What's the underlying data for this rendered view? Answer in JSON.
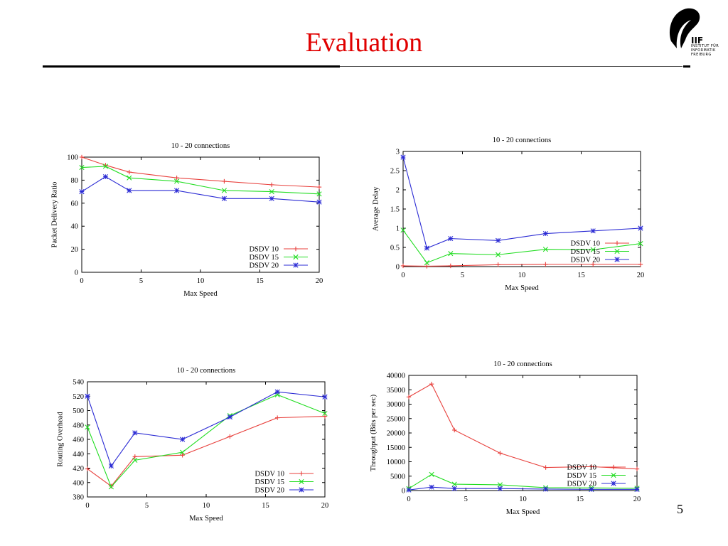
{
  "slide": {
    "title": "Evaluation",
    "page_number": "5",
    "logo": {
      "abbr": "IIF",
      "line1": "INSTITUT FÜR",
      "line2": "INFORMATIK",
      "line3": "FREIBURG"
    }
  },
  "colors": {
    "dsdv10": "#e8413d",
    "dsdv15": "#22dd22",
    "dsdv20": "#2b2bd4",
    "title": "#e00000"
  },
  "chart_data": [
    {
      "id": "pdr",
      "type": "line",
      "title": "10 - 20 connections",
      "xlabel": "Max Speed",
      "ylabel": "Packet Delivery Ratio",
      "xlim": [
        0,
        20
      ],
      "ylim": [
        0,
        100
      ],
      "xticks": [
        0,
        5,
        10,
        15,
        20
      ],
      "yticks": [
        0,
        20,
        40,
        60,
        80,
        100
      ],
      "ytick_labels": [
        "0",
        "20",
        "40",
        "60",
        "80",
        "100"
      ],
      "legend_position": "bottom-right",
      "series": [
        {
          "name": "DSDV 10",
          "marker": "+",
          "color": "#e8413d",
          "x": [
            0,
            2,
            4,
            8,
            12,
            16,
            20
          ],
          "y": [
            100,
            93,
            87,
            82,
            79,
            76,
            74
          ]
        },
        {
          "name": "DSDV 15",
          "marker": "x",
          "color": "#22dd22",
          "x": [
            0,
            2,
            4,
            8,
            12,
            16,
            20
          ],
          "y": [
            91,
            92,
            82,
            79,
            71,
            70,
            68
          ]
        },
        {
          "name": "DSDV 20",
          "marker": "*",
          "color": "#2b2bd4",
          "x": [
            0,
            2,
            4,
            8,
            12,
            16,
            20
          ],
          "y": [
            70,
            83,
            71,
            71,
            64,
            64,
            61
          ]
        }
      ]
    },
    {
      "id": "delay",
      "type": "line",
      "title": "10 - 20 connections",
      "xlabel": "Max Speed",
      "ylabel": "Average Delay",
      "xlim": [
        0,
        20
      ],
      "ylim": [
        0,
        3
      ],
      "xticks": [
        0,
        5,
        10,
        15,
        20
      ],
      "yticks": [
        0,
        0.5,
        1,
        1.5,
        2,
        2.5,
        3
      ],
      "ytick_labels": [
        "0",
        "0.5",
        "1",
        "1.5",
        "2",
        "2.5",
        "3"
      ],
      "legend_position": "bottom-right",
      "series": [
        {
          "name": "DSDV 10",
          "marker": "+",
          "color": "#e8413d",
          "x": [
            0,
            2,
            4,
            8,
            12,
            16,
            20
          ],
          "y": [
            0.02,
            0.01,
            0.02,
            0.05,
            0.06,
            0.06,
            0.06
          ]
        },
        {
          "name": "DSDV 15",
          "marker": "x",
          "color": "#22dd22",
          "x": [
            0,
            2,
            4,
            8,
            12,
            16,
            20
          ],
          "y": [
            0.95,
            0.1,
            0.34,
            0.31,
            0.45,
            0.44,
            0.6
          ]
        },
        {
          "name": "DSDV 20",
          "marker": "*",
          "color": "#2b2bd4",
          "x": [
            0,
            2,
            4,
            8,
            12,
            16,
            20
          ],
          "y": [
            2.85,
            0.48,
            0.73,
            0.68,
            0.86,
            0.93,
            1.0
          ]
        }
      ]
    },
    {
      "id": "overhead",
      "type": "line",
      "title": "10 - 20 connections",
      "xlabel": "Max Speed",
      "ylabel": "Routing Overhead",
      "xlim": [
        0,
        20
      ],
      "ylim": [
        380,
        540
      ],
      "xticks": [
        0,
        5,
        10,
        15,
        20
      ],
      "yticks": [
        380,
        400,
        420,
        440,
        460,
        480,
        500,
        520,
        540
      ],
      "ytick_labels": [
        "380",
        "400",
        "420",
        "440",
        "460",
        "480",
        "500",
        "520",
        "540"
      ],
      "legend_position": "bottom-right",
      "series": [
        {
          "name": "DSDV 10",
          "marker": "+",
          "color": "#e8413d",
          "x": [
            0,
            2,
            4,
            8,
            12,
            16,
            20
          ],
          "y": [
            419,
            395,
            436,
            438,
            464,
            490,
            492
          ]
        },
        {
          "name": "DSDV 15",
          "marker": "x",
          "color": "#22dd22",
          "x": [
            0,
            2,
            4,
            8,
            12,
            16,
            20
          ],
          "y": [
            477,
            394,
            431,
            442,
            493,
            522,
            496
          ]
        },
        {
          "name": "DSDV 20",
          "marker": "*",
          "color": "#2b2bd4",
          "x": [
            0,
            2,
            4,
            8,
            12,
            16,
            20
          ],
          "y": [
            520,
            423,
            469,
            460,
            491,
            526,
            519
          ]
        }
      ]
    },
    {
      "id": "throughput",
      "type": "line",
      "title": "10 - 20 connections",
      "xlabel": "Max Speed",
      "ylabel": "Throughput (Bits per sec)",
      "xlim": [
        0,
        20
      ],
      "ylim": [
        0,
        40000
      ],
      "xticks": [
        0,
        5,
        10,
        15,
        20
      ],
      "yticks": [
        0,
        5000,
        10000,
        15000,
        20000,
        25000,
        30000,
        35000,
        40000
      ],
      "ytick_labels": [
        "0",
        "5000",
        "10000",
        "15000",
        "20000",
        "25000",
        "30000",
        "35000",
        "40000"
      ],
      "legend_position": "bottom-right",
      "series": [
        {
          "name": "DSDV 10",
          "marker": "+",
          "color": "#e8413d",
          "x": [
            0,
            2,
            4,
            8,
            12,
            16,
            20
          ],
          "y": [
            32500,
            37000,
            21000,
            13000,
            8000,
            8300,
            7500
          ]
        },
        {
          "name": "DSDV 15",
          "marker": "x",
          "color": "#22dd22",
          "x": [
            0,
            2,
            4,
            8,
            12,
            16,
            20
          ],
          "y": [
            700,
            5600,
            2200,
            2000,
            1000,
            900,
            800
          ]
        },
        {
          "name": "DSDV 20",
          "marker": "*",
          "color": "#2b2bd4",
          "x": [
            0,
            2,
            4,
            8,
            12,
            16,
            20
          ],
          "y": [
            200,
            1200,
            700,
            700,
            500,
            400,
            400
          ]
        }
      ]
    }
  ]
}
